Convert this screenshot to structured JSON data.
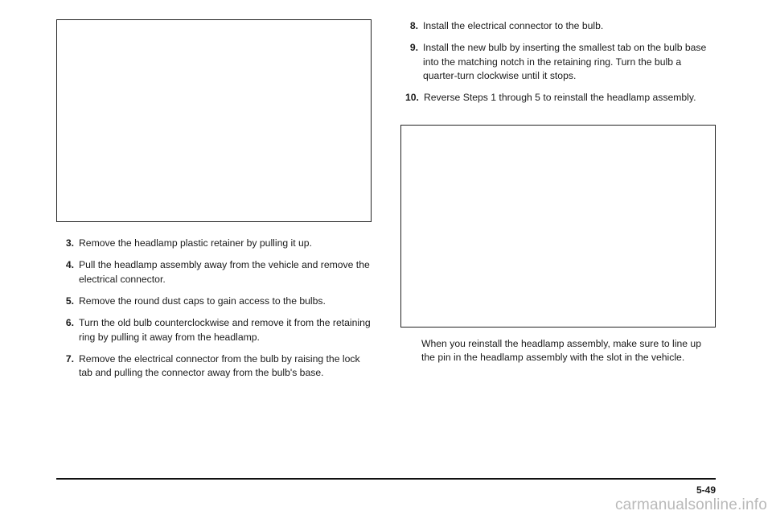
{
  "left": {
    "steps": [
      {
        "n": "3.",
        "t": "Remove the headlamp plastic retainer by pulling it up."
      },
      {
        "n": "4.",
        "t": "Pull the headlamp assembly away from the vehicle and remove the electrical connector."
      },
      {
        "n": "5.",
        "t": "Remove the round dust caps to gain access to the bulbs."
      },
      {
        "n": "6.",
        "t": "Turn the old bulb counterclockwise and remove it from the retaining ring by pulling it away from the headlamp."
      },
      {
        "n": "7.",
        "t": "Remove the electrical connector from the bulb by raising the lock tab and pulling the connector away from the bulb's base."
      }
    ]
  },
  "right": {
    "steps": [
      {
        "n": "8.",
        "t": "Install the electrical connector to the bulb."
      },
      {
        "n": "9.",
        "t": "Install the new bulb by inserting the smallest tab on the bulb base into the matching notch in the retaining ring. Turn the bulb a quarter-turn clockwise until it stops."
      },
      {
        "n": "10.",
        "t": "Reverse Steps 1 through 5 to reinstall the headlamp assembly."
      }
    ],
    "caption": "When you reinstall the headlamp assembly, make sure to line up the pin in the headlamp assembly with the slot in the vehicle."
  },
  "page_number": "5-49",
  "watermark": "carmanualsonline.info"
}
